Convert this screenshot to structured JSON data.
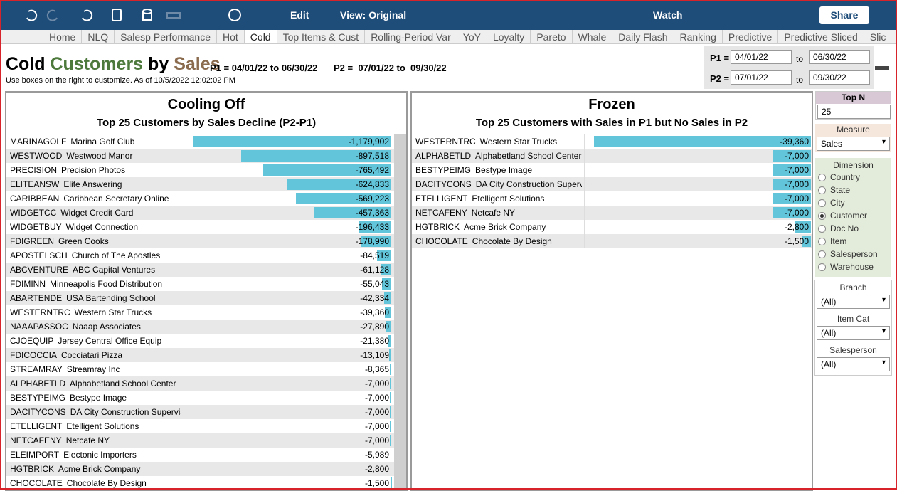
{
  "toolbar": {
    "edit": "Edit",
    "view": "View: Original",
    "watch": "Watch",
    "share": "Share"
  },
  "tabs": [
    "Home",
    "NLQ",
    "Salesp Performance",
    "Hot",
    "Cold",
    "Top Items & Cust",
    "Rolling-Period Var",
    "YoY",
    "Loyalty",
    "Pareto",
    "Whale",
    "Daily Flash",
    "Ranking",
    "Predictive",
    "Predictive Sliced",
    "Slic"
  ],
  "active_tab": "Cold",
  "header": {
    "title_parts": [
      "Cold",
      "Customers",
      "by",
      "Sales"
    ],
    "period1": "P1 = 04/01/22 to 06/30/22",
    "period2": "P2 =  07/01/22 to  09/30/22",
    "subtitle": "Use boxes on the right to customize.  As of 10/5/2022 12:02:02 PM"
  },
  "date_filters": [
    {
      "label": "P1 =",
      "from": "04/01/22",
      "to_text": "to",
      "to": "06/30/22"
    },
    {
      "label": "P2 =",
      "from": "07/01/22",
      "to_text": "to",
      "to": "09/30/22"
    }
  ],
  "panels": [
    {
      "title": "Cooling Off",
      "subtitle": "Top 25 Customers by Sales Decline (P2-P1)",
      "rows": [
        {
          "code": "MARINAGOLF",
          "name": "Marina Golf Club",
          "value": -1179902,
          "label": "-1,179,902"
        },
        {
          "code": "WESTWOOD",
          "name": "Westwood Manor",
          "value": -897518,
          "label": "-897,518"
        },
        {
          "code": "PRECISION",
          "name": "Precision Photos",
          "value": -765492,
          "label": "-765,492"
        },
        {
          "code": "ELITEANSW",
          "name": "Elite Answering",
          "value": -624833,
          "label": "-624,833"
        },
        {
          "code": "CARIBBEAN",
          "name": "Caribbean Secretary Online",
          "value": -569223,
          "label": "-569,223"
        },
        {
          "code": "WIDGETCC",
          "name": "Widget Credit Card",
          "value": -457363,
          "label": "-457,363"
        },
        {
          "code": "WIDGETBUY",
          "name": "Widget Connection",
          "value": -196433,
          "label": "-196,433"
        },
        {
          "code": "FDIGREEN",
          "name": "Green Cooks",
          "value": -178990,
          "label": "-178,990"
        },
        {
          "code": "APOSTELSCH",
          "name": "Church of The Apostles",
          "value": -84519,
          "label": "-84,519"
        },
        {
          "code": "ABCVENTURE",
          "name": "ABC Capital Ventures",
          "value": -61128,
          "label": "-61,128"
        },
        {
          "code": "FDIMINN",
          "name": "Minneapolis Food Distribution",
          "value": -55043,
          "label": "-55,043"
        },
        {
          "code": "ABARTENDE",
          "name": "USA Bartending School",
          "value": -42334,
          "label": "-42,334"
        },
        {
          "code": "WESTERNTRC",
          "name": "Western Star Trucks",
          "value": -39360,
          "label": "-39,360"
        },
        {
          "code": "NAAAPASSOC",
          "name": "Naaap Associates",
          "value": -27890,
          "label": "-27,890"
        },
        {
          "code": "CJOEQUIP",
          "name": "Jersey Central Office Equip",
          "value": -21380,
          "label": "-21,380"
        },
        {
          "code": "FDICOCCIA",
          "name": "Cocciatari Pizza",
          "value": -13109,
          "label": "-13,109"
        },
        {
          "code": "STREAMRAY",
          "name": "Streamray Inc",
          "value": -8365,
          "label": "-8,365"
        },
        {
          "code": "ALPHABETLD",
          "name": "Alphabetland School Center",
          "value": -7000,
          "label": "-7,000"
        },
        {
          "code": "BESTYPEIMG",
          "name": "Bestype Image",
          "value": -7000,
          "label": "-7,000"
        },
        {
          "code": "DACITYCONS",
          "name": "DA City Construction Superviso..",
          "value": -7000,
          "label": "-7,000"
        },
        {
          "code": "ETELLIGENT",
          "name": "Etelligent Solutions",
          "value": -7000,
          "label": "-7,000"
        },
        {
          "code": "NETCAFENY",
          "name": "Netcafe NY",
          "value": -7000,
          "label": "-7,000"
        },
        {
          "code": "ELEIMPORT",
          "name": "Electonic Importers",
          "value": -5989,
          "label": "-5,989"
        },
        {
          "code": "HGTBRICK",
          "name": "Acme Brick Company",
          "value": -2800,
          "label": "-2,800"
        },
        {
          "code": "CHOCOLATE",
          "name": "Chocolate By Design",
          "value": -1500,
          "label": "-1,500"
        }
      ]
    },
    {
      "title": "Frozen",
      "subtitle": "Top 25 Customers with Sales in P1 but No Sales in P2",
      "rows": [
        {
          "code": "WESTERNTRC",
          "name": "Western Star Trucks",
          "value": -39360,
          "label": "-39,360"
        },
        {
          "code": "ALPHABETLD",
          "name": "Alphabetland School Center",
          "value": -7000,
          "label": "-7,000"
        },
        {
          "code": "BESTYPEIMG",
          "name": "Bestype Image",
          "value": -7000,
          "label": "-7,000"
        },
        {
          "code": "DACITYCONS",
          "name": "DA City Construction Supervi..",
          "value": -7000,
          "label": "-7,000"
        },
        {
          "code": "ETELLIGENT",
          "name": "Etelligent Solutions",
          "value": -7000,
          "label": "-7,000"
        },
        {
          "code": "NETCAFENY",
          "name": "Netcafe NY",
          "value": -7000,
          "label": "-7,000"
        },
        {
          "code": "HGTBRICK",
          "name": "Acme Brick Company",
          "value": -2800,
          "label": "-2,800"
        },
        {
          "code": "CHOCOLATE",
          "name": "Chocolate By Design",
          "value": -1500,
          "label": "-1,500"
        }
      ]
    }
  ],
  "sidebar": {
    "top_n": {
      "label": "Top N",
      "value": "25"
    },
    "measure": {
      "label": "Measure",
      "value": "Sales"
    },
    "dimension": {
      "label": "Dimension",
      "options": [
        "Country",
        "State",
        "City",
        "Customer",
        "Doc No",
        "Item",
        "Salesperson",
        "Warehouse"
      ],
      "selected": "Customer"
    },
    "filters": [
      {
        "label": "Branch",
        "value": "(All)"
      },
      {
        "label": "Item Cat",
        "value": "(All)"
      },
      {
        "label": "Salesperson",
        "value": "(All)"
      }
    ]
  }
}
